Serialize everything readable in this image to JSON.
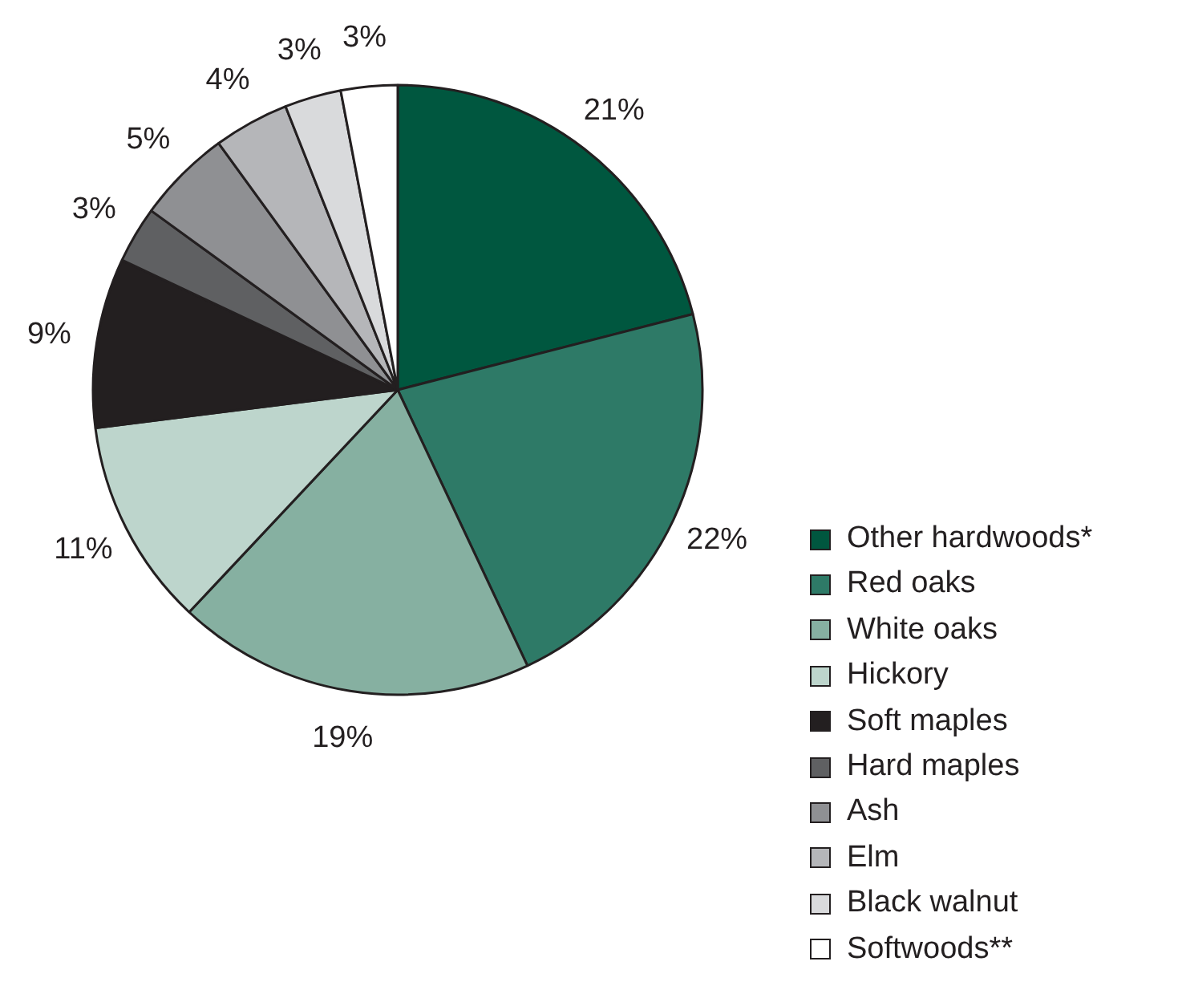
{
  "chart_data": {
    "type": "pie",
    "categories": [
      "Other hardwoods*",
      "Red oaks",
      "White oaks",
      "Hickory",
      "Soft maples",
      "Hard maples",
      "Ash",
      "Elm",
      "Black walnut",
      "Softwoods**"
    ],
    "values": [
      21,
      22,
      19,
      11,
      9,
      3,
      5,
      4,
      3,
      3
    ],
    "colors": [
      "#00573f",
      "#2e7a67",
      "#86b0a1",
      "#bdd5cc",
      "#231f20",
      "#5f6062",
      "#8f9093",
      "#b5b6b9",
      "#d9dadc",
      "#ffffff"
    ],
    "value_labels": [
      "21%",
      "22%",
      "19%",
      "11%",
      "9%",
      "3%",
      "5%",
      "4%",
      "3%",
      "3%"
    ],
    "legend": "bottom right"
  }
}
